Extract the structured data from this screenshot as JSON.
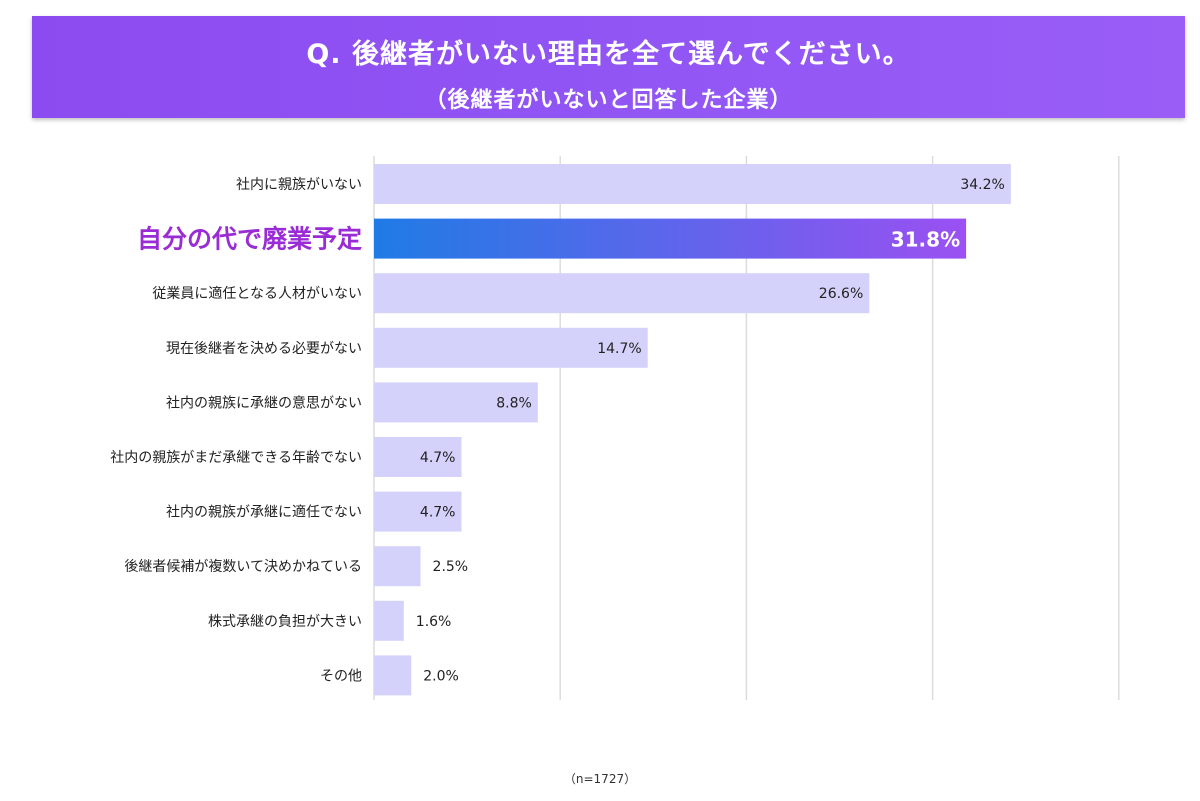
{
  "header": {
    "title": "Q. 後継者がいない理由を全て選んでください。",
    "subtitle": "（後継者がいないと回答した企業）"
  },
  "footnote": "（n=1727）",
  "colors": {
    "header": "#9157f5",
    "bar": "#d4d2fb",
    "highlight_start": "#1f7be5",
    "highlight_end": "#9b50f2",
    "highlight_label": "#9a2cd6",
    "grid": "#dcdcdc"
  },
  "chart_data": {
    "type": "bar",
    "orientation": "horizontal",
    "categories": [
      "社内に親族がいない",
      "自分の代で廃業予定",
      "従業員に適任となる人材がいない",
      "現在後継者を決める必要がない",
      "社内の親族に承継の意思がない",
      "社内の親族がまだ承継できる年齢でない",
      "社内の親族が承継に適任でない",
      "後継者候補が複数いて決めかねている",
      "株式承継の負担が大きい",
      "その他"
    ],
    "values": [
      34.2,
      31.8,
      26.6,
      14.7,
      8.8,
      4.7,
      4.7,
      2.5,
      1.6,
      2.0
    ],
    "data_labels": [
      "34.2%",
      "31.8%",
      "26.6%",
      "14.7%",
      "8.8%",
      "4.7%",
      "4.7%",
      "2.5%",
      "1.6%",
      "2.0%"
    ],
    "highlight_index": 1,
    "xlim": [
      0,
      40
    ],
    "grid": true,
    "legend": "none"
  }
}
